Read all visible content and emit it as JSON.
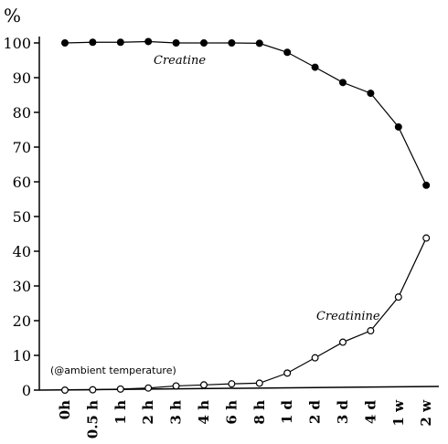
{
  "chart_data": {
    "type": "line",
    "unit_label": "%",
    "note": "(@ambient temperature)",
    "categories": [
      "0h",
      "0.5 h",
      "1 h",
      "2 h",
      "3 h",
      "4 h",
      "6 h",
      "8 h",
      "1 d",
      "2 d",
      "3 d",
      "4 d",
      "1 w",
      "2 w"
    ],
    "ylim": [
      0,
      100
    ],
    "yticks": [
      0,
      10,
      20,
      30,
      40,
      50,
      60,
      70,
      80,
      90,
      100
    ],
    "grid": false,
    "series": [
      {
        "name": "Creatine",
        "marker": "filled-circle",
        "values": [
          100,
          100.2,
          100.2,
          100.4,
          100,
          100,
          100,
          99.9,
          97.3,
          93,
          88.6,
          85.5,
          75.8,
          59
        ]
      },
      {
        "name": "Creatinine",
        "marker": "open-circle",
        "values": [
          0,
          0.1,
          0.3,
          0.6,
          1.2,
          1.5,
          1.8,
          2,
          4.9,
          9.3,
          13.8,
          17.1,
          26.8,
          43.8
        ]
      }
    ]
  }
}
